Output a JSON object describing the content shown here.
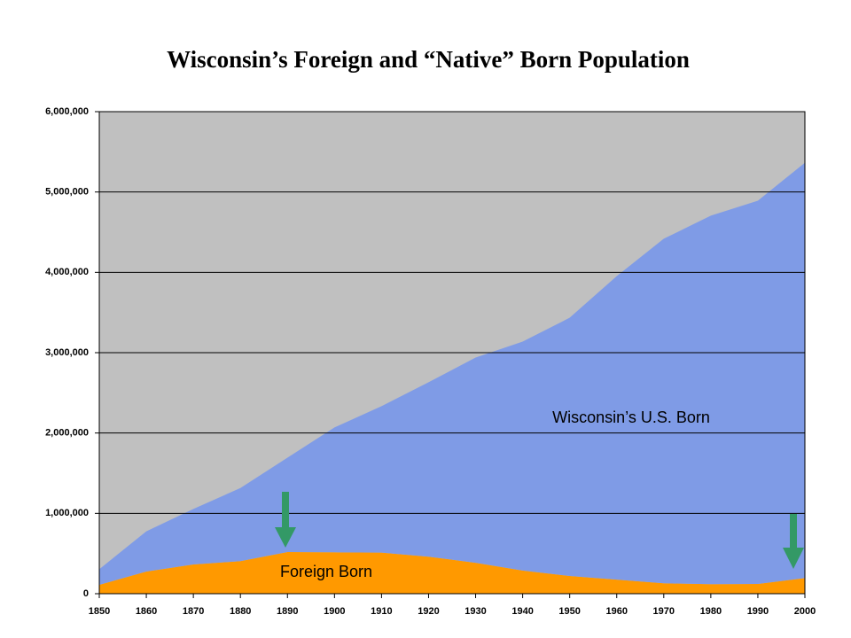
{
  "chart_data": {
    "type": "stacked_area",
    "title": "Wisconsin’s Foreign and “Native” Born Population",
    "x": [
      1850,
      1860,
      1870,
      1880,
      1890,
      1900,
      1910,
      1920,
      1930,
      1940,
      1950,
      1960,
      1970,
      1980,
      1990,
      2000
    ],
    "series": [
      {
        "name": "Foreign Born",
        "color": "#ff9900",
        "values": [
          110000,
          276000,
          364000,
          405000,
          519000,
          515000,
          512000,
          461000,
          385000,
          288000,
          220000,
          175000,
          129000,
          118000,
          122000,
          194000
        ]
      },
      {
        "name": "Wisconsin’s U.S. Born",
        "color": "#7f9be6",
        "values": [
          195000,
          500000,
          691000,
          910000,
          1174000,
          1554000,
          1822000,
          2171000,
          2554000,
          2850000,
          3215000,
          3777000,
          4289000,
          4588000,
          4770000,
          5170000
        ]
      }
    ],
    "xlim": [
      1850,
      2000
    ],
    "xticks": [
      1850,
      1860,
      1870,
      1880,
      1890,
      1900,
      1910,
      1920,
      1930,
      1940,
      1950,
      1960,
      1970,
      1980,
      1990,
      2000
    ],
    "ylim": [
      0,
      6000000
    ],
    "yticks": [
      0,
      {
        "value": 1000000,
        "label": "1,000,000"
      },
      {
        "value": 2000000,
        "label": "2,000,000"
      },
      {
        "value": 3000000,
        "label": "3,000,000"
      },
      {
        "value": 4000000,
        "label": "4,000,000"
      },
      {
        "value": 5000000,
        "label": "5,000,000"
      },
      {
        "value": 6000000,
        "label": "6,000,000"
      }
    ],
    "grid": true,
    "plot_background": "#c0c0c0"
  }
}
